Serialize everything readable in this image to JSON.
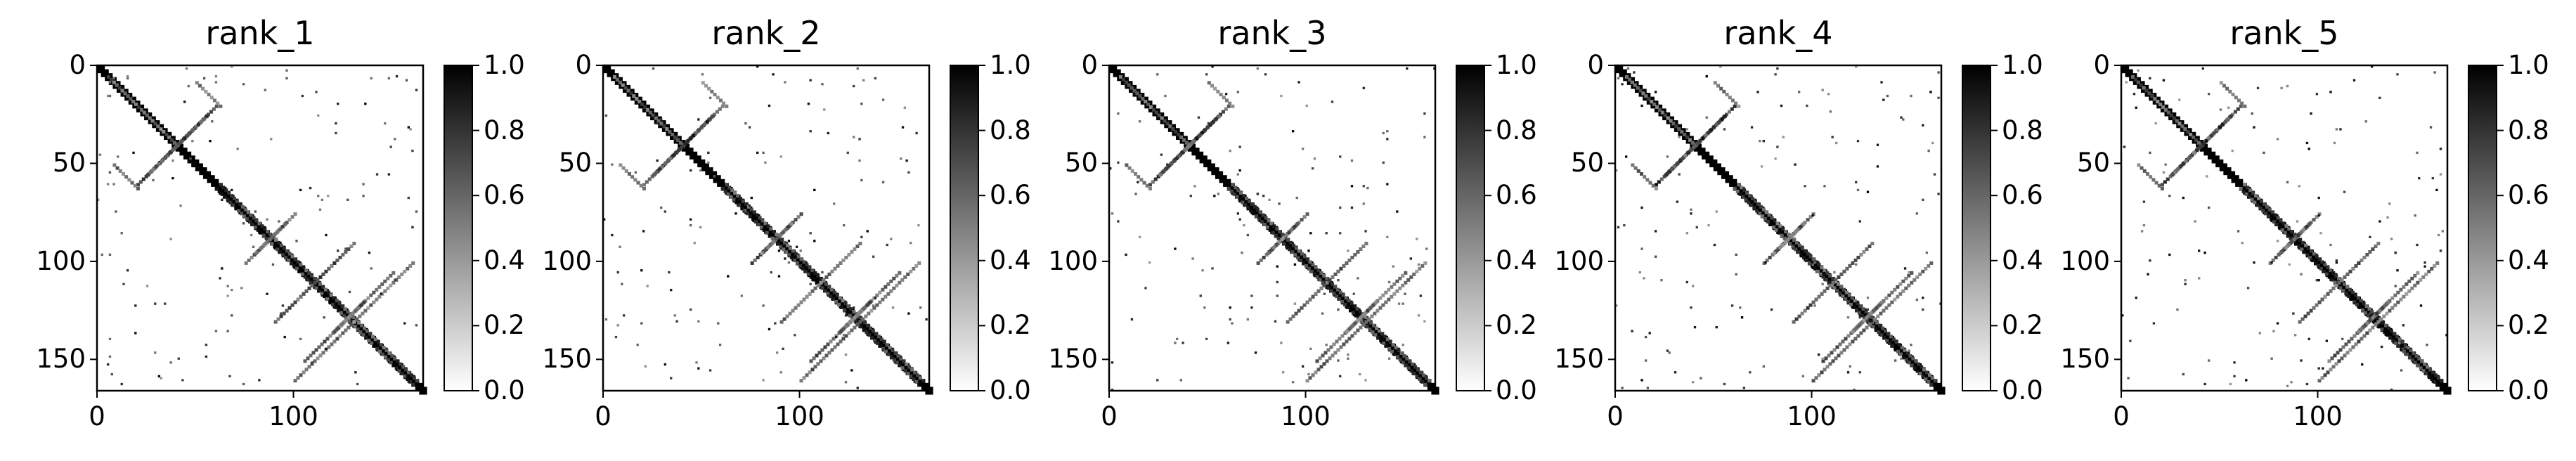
{
  "chart_data": [
    {
      "type": "heatmap",
      "title": "rank_1",
      "xlabel": "",
      "ylabel": "",
      "matrix_size": 166,
      "xlim": [
        0,
        166
      ],
      "ylim": [
        166,
        0
      ],
      "x_ticks": [
        0,
        100
      ],
      "y_ticks": [
        0,
        50,
        100,
        150
      ],
      "colorbar": {
        "min": 0.0,
        "max": 1.0,
        "ticks": [
          "0.0",
          "0.2",
          "0.4",
          "0.6",
          "0.8",
          "1.0"
        ],
        "colormap": "gray_r"
      },
      "diagonal_band": true,
      "contact_segments": [
        {
          "x1": 5,
          "y1": 5,
          "x2": 40,
          "y2": 40,
          "v": 0.9
        },
        {
          "x1": 20,
          "y1": 60,
          "x2": 55,
          "y2": 25,
          "v": 0.95
        },
        {
          "x1": 60,
          "y1": 62,
          "x2": 160,
          "y2": 162,
          "v": 1.0
        },
        {
          "x1": 75,
          "y1": 100,
          "x2": 95,
          "y2": 80,
          "v": 0.8
        },
        {
          "x1": 90,
          "y1": 130,
          "x2": 120,
          "y2": 100,
          "v": 0.85
        },
        {
          "x1": 105,
          "y1": 150,
          "x2": 135,
          "y2": 120,
          "v": 0.8
        },
        {
          "x1": 8,
          "y1": 50,
          "x2": 20,
          "y2": 62,
          "v": 0.7
        },
        {
          "x1": 100,
          "y1": 160,
          "x2": 130,
          "y2": 130,
          "v": 0.75
        }
      ]
    },
    {
      "type": "heatmap",
      "title": "rank_2",
      "xlabel": "",
      "ylabel": "",
      "matrix_size": 166,
      "xlim": [
        0,
        166
      ],
      "ylim": [
        166,
        0
      ],
      "x_ticks": [
        0,
        100
      ],
      "y_ticks": [
        0,
        50,
        100,
        150
      ],
      "colorbar": {
        "min": 0.0,
        "max": 1.0,
        "ticks": [
          "0.0",
          "0.2",
          "0.4",
          "0.6",
          "0.8",
          "1.0"
        ],
        "colormap": "gray_r"
      },
      "diagonal_band": true,
      "contact_segments": [
        {
          "x1": 5,
          "y1": 5,
          "x2": 40,
          "y2": 40,
          "v": 0.9
        },
        {
          "x1": 20,
          "y1": 60,
          "x2": 55,
          "y2": 25,
          "v": 0.95
        },
        {
          "x1": 60,
          "y1": 62,
          "x2": 160,
          "y2": 162,
          "v": 1.0
        },
        {
          "x1": 75,
          "y1": 100,
          "x2": 95,
          "y2": 80,
          "v": 0.8
        },
        {
          "x1": 90,
          "y1": 130,
          "x2": 120,
          "y2": 100,
          "v": 0.85
        },
        {
          "x1": 105,
          "y1": 150,
          "x2": 135,
          "y2": 120,
          "v": 0.8
        },
        {
          "x1": 8,
          "y1": 50,
          "x2": 20,
          "y2": 62,
          "v": 0.7
        },
        {
          "x1": 100,
          "y1": 160,
          "x2": 130,
          "y2": 130,
          "v": 0.75
        }
      ]
    },
    {
      "type": "heatmap",
      "title": "rank_3",
      "xlabel": "",
      "ylabel": "",
      "matrix_size": 166,
      "xlim": [
        0,
        166
      ],
      "ylim": [
        166,
        0
      ],
      "x_ticks": [
        0,
        100
      ],
      "y_ticks": [
        0,
        50,
        100,
        150
      ],
      "colorbar": {
        "min": 0.0,
        "max": 1.0,
        "ticks": [
          "0.0",
          "0.2",
          "0.4",
          "0.6",
          "0.8",
          "1.0"
        ],
        "colormap": "gray_r"
      },
      "diagonal_band": true,
      "contact_segments": [
        {
          "x1": 5,
          "y1": 5,
          "x2": 40,
          "y2": 40,
          "v": 0.9
        },
        {
          "x1": 20,
          "y1": 60,
          "x2": 55,
          "y2": 25,
          "v": 0.95
        },
        {
          "x1": 60,
          "y1": 62,
          "x2": 160,
          "y2": 162,
          "v": 1.0
        },
        {
          "x1": 75,
          "y1": 100,
          "x2": 95,
          "y2": 80,
          "v": 0.8
        },
        {
          "x1": 90,
          "y1": 130,
          "x2": 120,
          "y2": 100,
          "v": 0.85
        },
        {
          "x1": 105,
          "y1": 150,
          "x2": 135,
          "y2": 120,
          "v": 0.8
        },
        {
          "x1": 8,
          "y1": 50,
          "x2": 20,
          "y2": 62,
          "v": 0.7
        },
        {
          "x1": 100,
          "y1": 160,
          "x2": 130,
          "y2": 130,
          "v": 0.75
        }
      ]
    },
    {
      "type": "heatmap",
      "title": "rank_4",
      "xlabel": "",
      "ylabel": "",
      "matrix_size": 166,
      "xlim": [
        0,
        166
      ],
      "ylim": [
        166,
        0
      ],
      "x_ticks": [
        0,
        100
      ],
      "y_ticks": [
        0,
        50,
        100,
        150
      ],
      "colorbar": {
        "min": 0.0,
        "max": 1.0,
        "ticks": [
          "0.0",
          "0.2",
          "0.4",
          "0.6",
          "0.8",
          "1.0"
        ],
        "colormap": "gray_r"
      },
      "diagonal_band": true,
      "contact_segments": [
        {
          "x1": 5,
          "y1": 5,
          "x2": 40,
          "y2": 40,
          "v": 0.9
        },
        {
          "x1": 20,
          "y1": 60,
          "x2": 55,
          "y2": 25,
          "v": 0.95
        },
        {
          "x1": 60,
          "y1": 62,
          "x2": 160,
          "y2": 162,
          "v": 1.0
        },
        {
          "x1": 75,
          "y1": 100,
          "x2": 95,
          "y2": 80,
          "v": 0.8
        },
        {
          "x1": 90,
          "y1": 130,
          "x2": 120,
          "y2": 100,
          "v": 0.85
        },
        {
          "x1": 105,
          "y1": 150,
          "x2": 135,
          "y2": 120,
          "v": 0.8
        },
        {
          "x1": 8,
          "y1": 50,
          "x2": 20,
          "y2": 62,
          "v": 0.7
        },
        {
          "x1": 100,
          "y1": 160,
          "x2": 130,
          "y2": 130,
          "v": 0.75
        }
      ]
    },
    {
      "type": "heatmap",
      "title": "rank_5",
      "xlabel": "",
      "ylabel": "",
      "matrix_size": 166,
      "xlim": [
        0,
        166
      ],
      "ylim": [
        166,
        0
      ],
      "x_ticks": [
        0,
        100
      ],
      "y_ticks": [
        0,
        50,
        100,
        150
      ],
      "colorbar": {
        "min": 0.0,
        "max": 1.0,
        "ticks": [
          "0.0",
          "0.2",
          "0.4",
          "0.6",
          "0.8",
          "1.0"
        ],
        "colormap": "gray_r"
      },
      "diagonal_band": true,
      "contact_segments": [
        {
          "x1": 5,
          "y1": 5,
          "x2": 40,
          "y2": 40,
          "v": 0.9
        },
        {
          "x1": 20,
          "y1": 60,
          "x2": 55,
          "y2": 25,
          "v": 0.95
        },
        {
          "x1": 60,
          "y1": 62,
          "x2": 160,
          "y2": 162,
          "v": 1.0
        },
        {
          "x1": 75,
          "y1": 100,
          "x2": 95,
          "y2": 80,
          "v": 0.8
        },
        {
          "x1": 90,
          "y1": 130,
          "x2": 120,
          "y2": 100,
          "v": 0.85
        },
        {
          "x1": 105,
          "y1": 150,
          "x2": 135,
          "y2": 120,
          "v": 0.8
        },
        {
          "x1": 8,
          "y1": 50,
          "x2": 20,
          "y2": 62,
          "v": 0.7
        },
        {
          "x1": 100,
          "y1": 160,
          "x2": 130,
          "y2": 130,
          "v": 0.75
        }
      ]
    }
  ]
}
